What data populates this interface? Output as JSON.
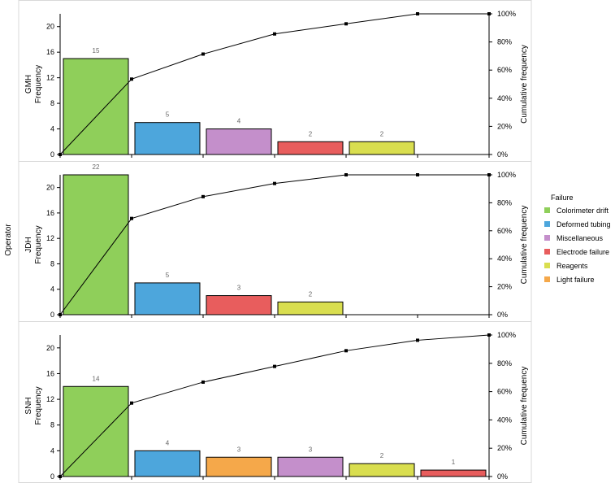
{
  "chart_data": {
    "type": "bar",
    "subtype": "pareto",
    "y_axis_label": "Frequency",
    "y2_axis_label": "Cumulative frequency",
    "group_label": "Operator",
    "ylim": [
      0,
      22
    ],
    "y_ticks": [
      0,
      4,
      8,
      12,
      16,
      20
    ],
    "y2lim": [
      0,
      100
    ],
    "y2_ticks": [
      "0%",
      "20%",
      "40%",
      "60%",
      "80%",
      "100%"
    ],
    "y2_tick_values": [
      0,
      20,
      40,
      60,
      80,
      100
    ],
    "legend": {
      "title": "Failure",
      "position": "right",
      "items": [
        {
          "name": "Colorimeter drift",
          "color": "#8fcf5a"
        },
        {
          "name": "Deformed tubing",
          "color": "#4da6dc"
        },
        {
          "name": "Miscellaneous",
          "color": "#c48fcb"
        },
        {
          "name": "Electrode failure",
          "color": "#e85d5d"
        },
        {
          "name": "Reagents",
          "color": "#d9de4f"
        },
        {
          "name": "Light failure",
          "color": "#f5a84a"
        }
      ]
    },
    "panels": [
      {
        "operator": "GMH",
        "bars": [
          {
            "category": "Colorimeter drift",
            "value": 15,
            "label": "15"
          },
          {
            "category": "Deformed tubing",
            "value": 5,
            "label": "5"
          },
          {
            "category": "Miscellaneous",
            "value": 4,
            "label": "4"
          },
          {
            "category": "Electrode failure",
            "value": 2,
            "label": "2"
          },
          {
            "category": "Reagents",
            "value": 2,
            "label": "2"
          }
        ],
        "cumulative_pct": [
          0,
          53.6,
          71.4,
          85.7,
          92.9,
          100,
          100
        ]
      },
      {
        "operator": "JDH",
        "bars": [
          {
            "category": "Colorimeter drift",
            "value": 22,
            "label": "22"
          },
          {
            "category": "Deformed tubing",
            "value": 5,
            "label": "5"
          },
          {
            "category": "Electrode failure",
            "value": 3,
            "label": "3"
          },
          {
            "category": "Reagents",
            "value": 2,
            "label": "2"
          }
        ],
        "cumulative_pct": [
          0,
          68.8,
          84.4,
          93.8,
          100,
          100,
          100
        ]
      },
      {
        "operator": "SNH",
        "bars": [
          {
            "category": "Colorimeter drift",
            "value": 14,
            "label": "14"
          },
          {
            "category": "Deformed tubing",
            "value": 4,
            "label": "4"
          },
          {
            "category": "Light failure",
            "value": 3,
            "label": "3"
          },
          {
            "category": "Miscellaneous",
            "value": 3,
            "label": "3"
          },
          {
            "category": "Reagents",
            "value": 2,
            "label": "2"
          },
          {
            "category": "Electrode failure",
            "value": 1,
            "label": "1"
          }
        ],
        "cumulative_pct": [
          0,
          51.9,
          66.7,
          77.8,
          88.9,
          96.3,
          100
        ]
      }
    ]
  }
}
